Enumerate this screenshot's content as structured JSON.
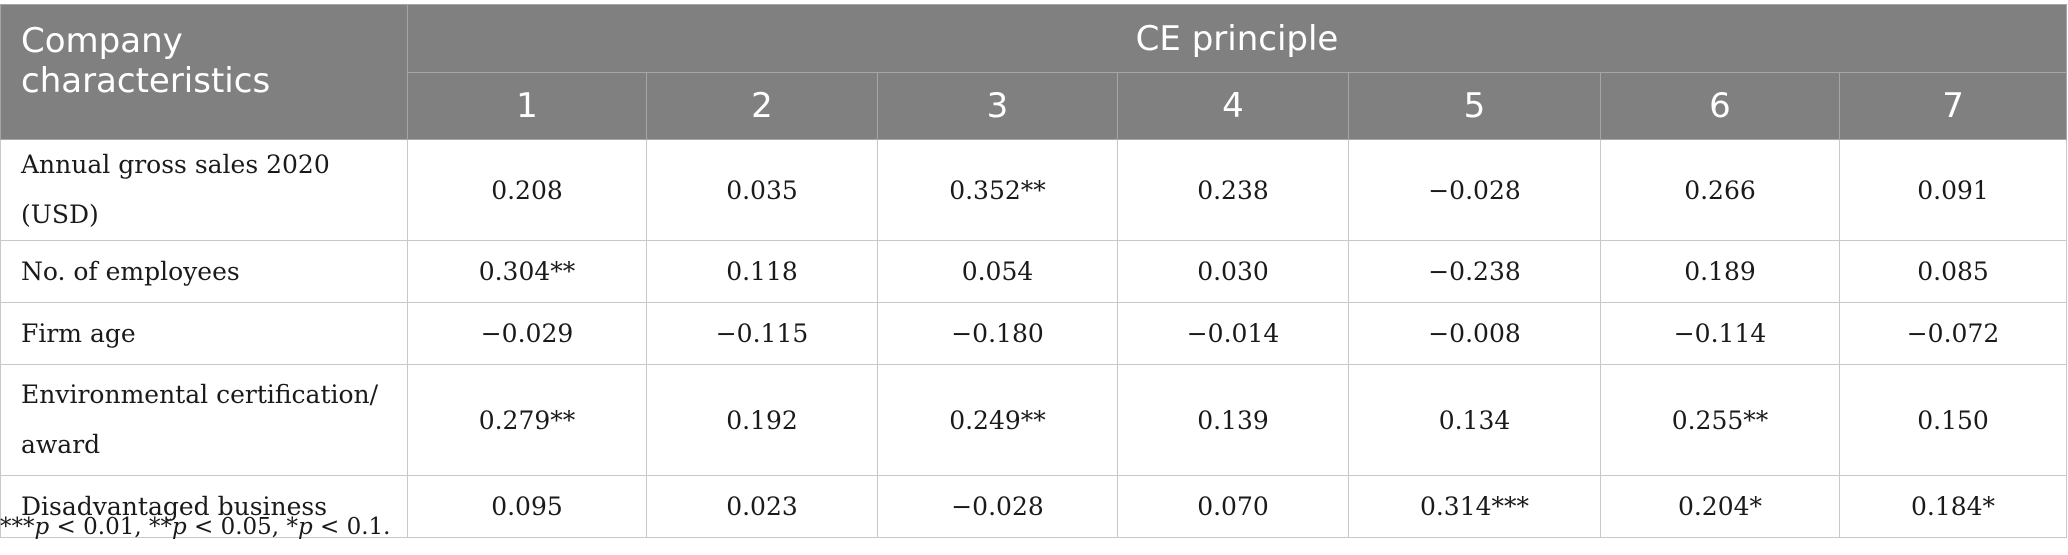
{
  "table": {
    "corner_header": "Company characteristics",
    "group_header": "CE principle",
    "columns": [
      "1",
      "2",
      "3",
      "4",
      "5",
      "6",
      "7"
    ],
    "rows": [
      {
        "label": "Annual gross sales 2020 (USD)",
        "cells": [
          "0.208",
          "0.035",
          "0.352**",
          "0.238",
          "−0.028",
          "0.266",
          "0.091"
        ]
      },
      {
        "label": "No. of employees",
        "cells": [
          "0.304**",
          "0.118",
          "0.054",
          "0.030",
          "−0.238",
          "0.189",
          "0.085"
        ]
      },
      {
        "label": "Firm age",
        "cells": [
          "−0.029",
          "−0.115",
          "−0.180",
          "−0.014",
          "−0.008",
          "−0.114",
          "−0.072"
        ]
      },
      {
        "label": "Environmental certification/ award",
        "cells": [
          "0.279**",
          "0.192",
          "0.249**",
          "0.139",
          "0.134",
          "0.255**",
          "0.150"
        ]
      },
      {
        "label": "Disadvantaged business",
        "cells": [
          "0.095",
          "0.023",
          "−0.028",
          "0.070",
          "0.314***",
          "0.204*",
          "0.184*"
        ]
      }
    ]
  },
  "footnote": {
    "m1": "***",
    "p1": "p",
    "t1": " < 0.01, ",
    "m2": "**",
    "p2": "p",
    "t2": " < 0.05, ",
    "m3": "*",
    "p3": "p",
    "t3": " < 0.1."
  }
}
